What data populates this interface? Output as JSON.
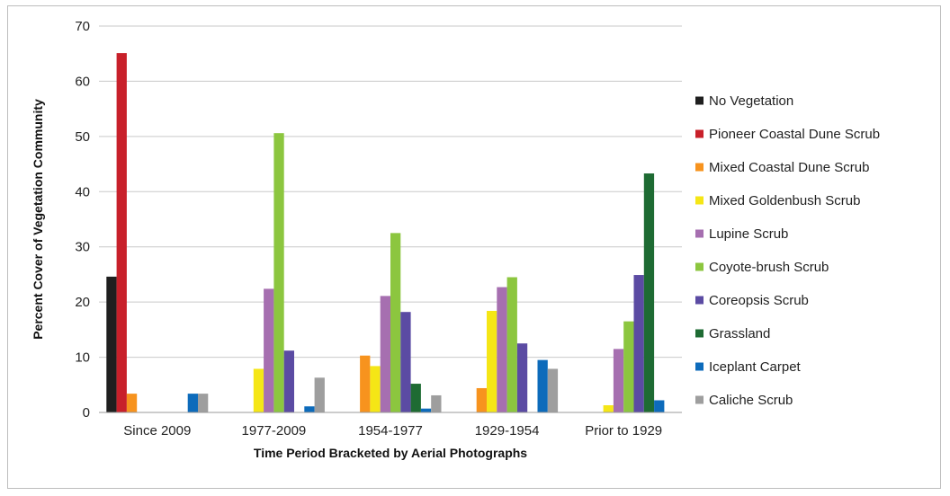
{
  "chart_data": {
    "type": "bar",
    "title": "",
    "xlabel": "Time Period Bracketed by Aerial Photographs",
    "ylabel": "Percent Cover of Vegetation Community",
    "ylim": [
      0,
      70
    ],
    "yticks": [
      0,
      10,
      20,
      30,
      40,
      50,
      60,
      70
    ],
    "grid": true,
    "legend": "right",
    "categories": [
      "Since 2009",
      "1977-2009",
      "1954-1977",
      "1929-1954",
      "Prior to 1929"
    ],
    "series": [
      {
        "name": "No Vegetation",
        "color": "#1f1f1f",
        "values": [
          24.6,
          0,
          0,
          0,
          0
        ]
      },
      {
        "name": "Pioneer Coastal Dune Scrub",
        "color": "#c8202a",
        "values": [
          65.1,
          0,
          0,
          0,
          0
        ]
      },
      {
        "name": "Mixed Coastal Dune Scrub",
        "color": "#f7931e",
        "values": [
          3.4,
          0,
          10.3,
          4.4,
          0
        ]
      },
      {
        "name": "Mixed Goldenbush Scrub",
        "color": "#f5e616",
        "values": [
          0,
          7.9,
          8.4,
          18.4,
          1.3
        ]
      },
      {
        "name": "Lupine Scrub",
        "color": "#a66fb0",
        "values": [
          0,
          22.4,
          21.1,
          22.7,
          11.5
        ]
      },
      {
        "name": "Coyote-brush Scrub",
        "color": "#8cc63f",
        "values": [
          0,
          50.6,
          32.5,
          24.5,
          16.5
        ]
      },
      {
        "name": "Coreopsis Scrub",
        "color": "#5b4ba3",
        "values": [
          0,
          11.2,
          18.2,
          12.5,
          24.9
        ]
      },
      {
        "name": "Grassland",
        "color": "#1e6b33",
        "values": [
          0,
          0,
          5.2,
          0,
          43.3
        ]
      },
      {
        "name": "Iceplant Carpet",
        "color": "#0d6bbb",
        "values": [
          3.4,
          1.1,
          0.7,
          9.5,
          2.2
        ]
      },
      {
        "name": "Caliche Scrub",
        "color": "#9e9e9e",
        "values": [
          3.4,
          6.3,
          3.1,
          7.9,
          0
        ]
      }
    ]
  }
}
